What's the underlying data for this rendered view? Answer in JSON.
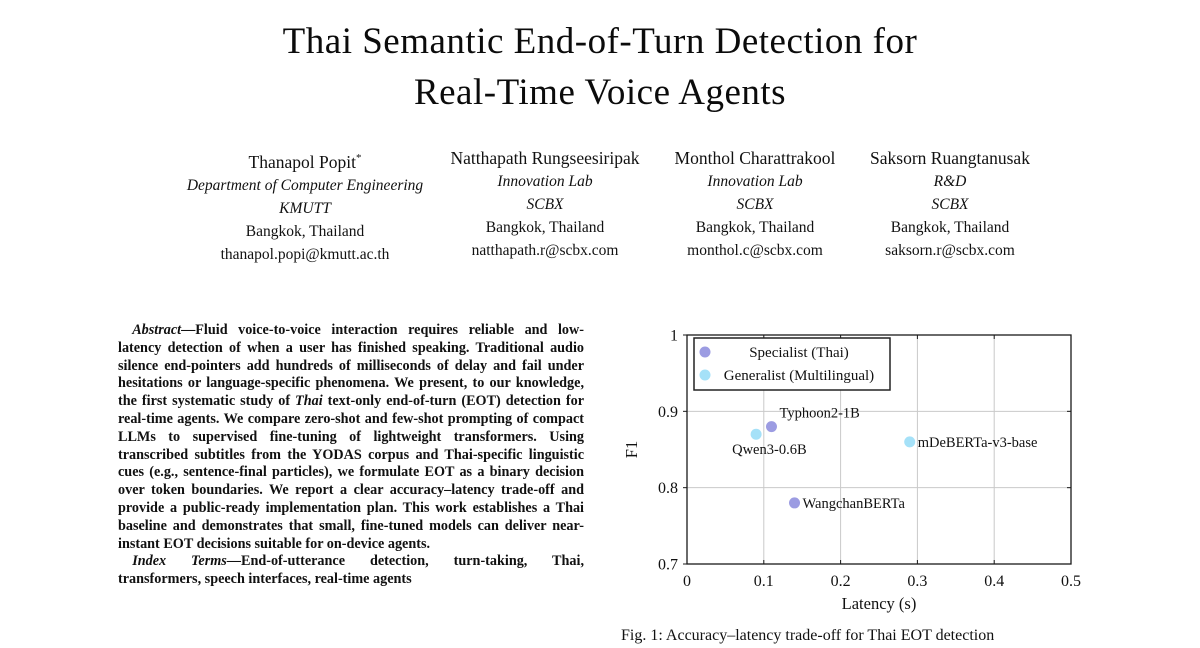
{
  "paper": {
    "title_line1": "Thai Semantic End-of-Turn Detection for",
    "title_line2": "Real-Time Voice Agents",
    "authors": [
      {
        "name": "Thanapol Popit",
        "suffix": "*",
        "dept": "Department of Computer Engineering",
        "org": "KMUTT",
        "city": "Bangkok, Thailand",
        "email": "thanapol.popi@kmutt.ac.th"
      },
      {
        "name": "Natthapath Rungseesiripak",
        "suffix": "",
        "dept": "Innovation Lab",
        "org": "SCBX",
        "city": "Bangkok, Thailand",
        "email": "natthapath.r@scbx.com"
      },
      {
        "name": "Monthol Charattrakool",
        "suffix": "",
        "dept": "Innovation Lab",
        "org": "SCBX",
        "city": "Bangkok, Thailand",
        "email": "monthol.c@scbx.com"
      },
      {
        "name": "Saksorn Ruangtanusak",
        "suffix": "",
        "dept": "R&D",
        "org": "SCBX",
        "city": "Bangkok, Thailand",
        "email": "saksorn.r@scbx.com"
      }
    ],
    "abstract": {
      "lead": "Abstract",
      "pre_italic": "—Fluid voice-to-voice interaction requires reliable and low-latency detection of when a user has finished speaking. Traditional audio silence end-pointers add hundreds of milliseconds of delay and fail under hesitations or language-specific phenomena. We present, to our knowledge, the first systematic study of ",
      "italic_word": "Thai",
      "post_italic": " text-only end-of-turn (EOT) detection for real-time agents. We compare zero-shot and few-shot prompting of compact LLMs to supervised fine-tuning of lightweight transformers. Using transcribed subtitles from the YODAS corpus and Thai-specific linguistic cues (e.g., sentence-final particles), we formulate EOT as a binary decision over token boundaries. We report a clear accuracy–latency trade-off and provide a public-ready implementation plan. This work establishes a Thai baseline and demonstrates that small, fine-tuned models can deliver near-instant EOT decisions suitable for on-device agents."
    },
    "index_terms": {
      "lead": "Index Terms",
      "body": "—End-of-utterance detection, turn-taking, Thai, transformers, speech interfaces, real-time agents"
    },
    "figure_caption": "Fig. 1: Accuracy–latency trade-off for Thai EOT detection"
  },
  "chart_data": {
    "type": "scatter",
    "title": "",
    "xlabel": "Latency (s)",
    "ylabel": "F1",
    "xlim": [
      0,
      0.5
    ],
    "ylim": [
      0.7,
      1.0
    ],
    "xticks": [
      0,
      0.1,
      0.2,
      0.3,
      0.4,
      0.5
    ],
    "yticks": [
      0.7,
      0.8,
      0.9,
      1
    ],
    "grid": true,
    "legend_position": "top-left",
    "grid_color": "#c9c9c9",
    "frame_color": "#1a1a1a",
    "series": [
      {
        "name": "Specialist (Thai)",
        "color": "#9c9ce2",
        "points": [
          {
            "label": "Typhoon2-1B",
            "x": 0.11,
            "y": 0.88,
            "dx": 8,
            "dy": -9
          },
          {
            "label": "WangchanBERTa",
            "x": 0.14,
            "y": 0.78,
            "dx": 8,
            "dy": 5
          }
        ]
      },
      {
        "name": "Generalist (Multilingual)",
        "color": "#a5e1f8",
        "points": [
          {
            "label": "Qwen3-0.6B",
            "x": 0.09,
            "y": 0.87,
            "dx": -24,
            "dy": 20
          },
          {
            "label": "mDeBERTa-v3-base",
            "x": 0.29,
            "y": 0.86,
            "dx": 8,
            "dy": 5
          }
        ]
      }
    ]
  }
}
